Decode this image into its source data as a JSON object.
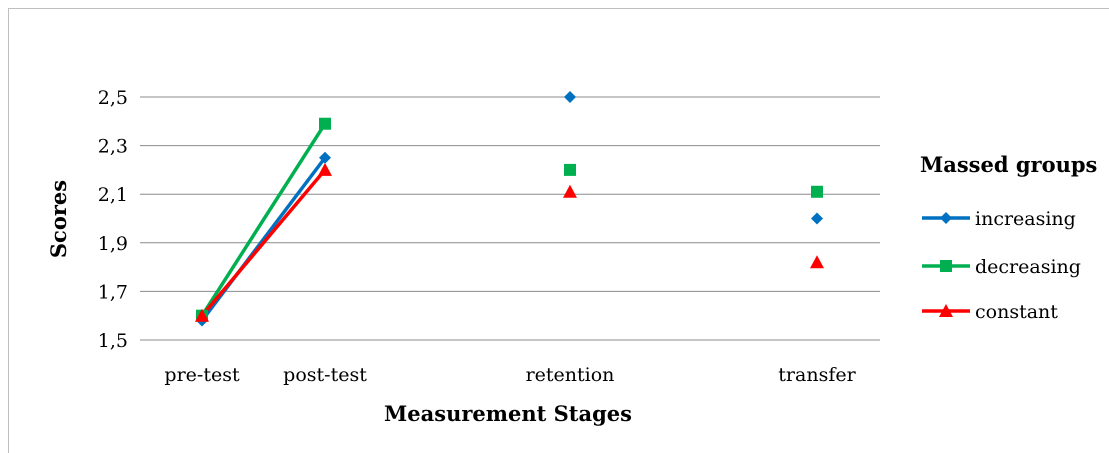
{
  "chart_data": {
    "type": "line",
    "title": "",
    "xlabel": "Measurement Stages",
    "ylabel": "Scores",
    "categories": [
      "pre-test",
      "post-test",
      "retention",
      "transfer"
    ],
    "ylim": [
      1.5,
      2.5
    ],
    "yticks": [
      1.5,
      1.7,
      1.9,
      2.1,
      2.3,
      2.5
    ],
    "ytick_labels": [
      "1,5",
      "1,7",
      "1,9",
      "2,1",
      "2,3",
      "2,5"
    ],
    "grid": true,
    "legend_title": "Massed groups",
    "legend_position": "right",
    "series": [
      {
        "name": "increasing",
        "values": [
          1.58,
          2.25,
          2.5,
          2.0
        ],
        "color": "#0070c0",
        "marker": "diamond"
      },
      {
        "name": "decreasing",
        "values": [
          1.6,
          2.39,
          2.2,
          2.11
        ],
        "color": "#00b050",
        "marker": "square"
      },
      {
        "name": "constant",
        "values": [
          1.6,
          2.2,
          2.11,
          1.82
        ],
        "color": "#ff0000",
        "marker": "triangle"
      }
    ],
    "connected_segments": [
      [
        0,
        1
      ]
    ]
  }
}
